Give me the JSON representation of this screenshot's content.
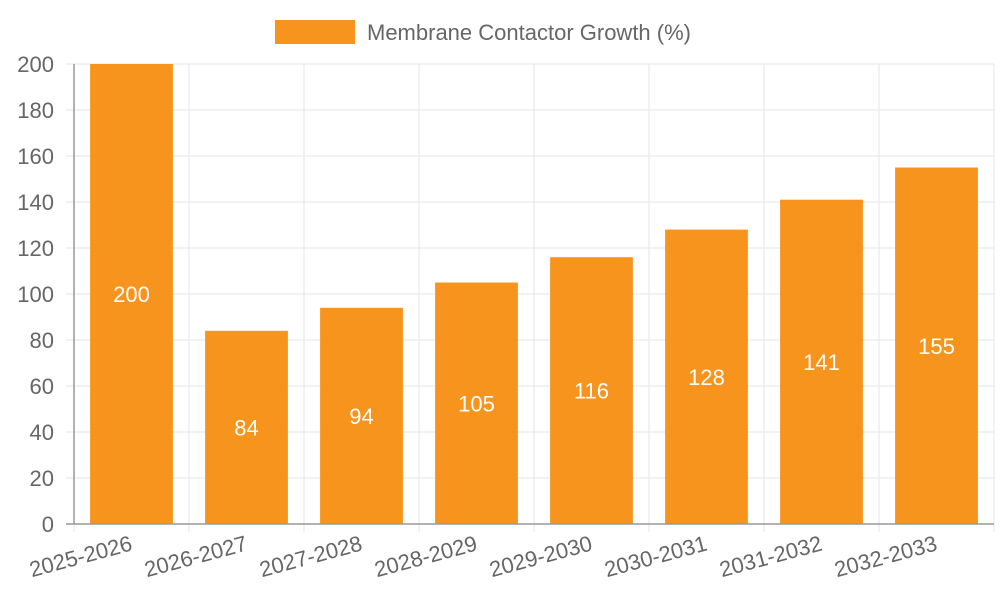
{
  "chart_data": {
    "type": "bar",
    "categories": [
      "2025-2026",
      "2026-2027",
      "2027-2028",
      "2028-2029",
      "2029-2030",
      "2030-2031",
      "2031-2032",
      "2032-2033"
    ],
    "series": [
      {
        "name": "Membrane Contactor Growth (%)",
        "values": [
          200,
          84,
          94,
          105,
          116,
          128,
          141,
          155
        ],
        "color": "#F7941D"
      }
    ],
    "ylim": [
      0,
      200
    ],
    "y_ticks": [
      "0",
      "20",
      "40",
      "60",
      "80",
      "100",
      "120",
      "140",
      "160",
      "180",
      "200"
    ],
    "grid": true,
    "legend_position": "top",
    "data_labels": true
  },
  "colors": {
    "bar": "#F7941D",
    "grid": "#e5e5e5",
    "axis": "#999999",
    "text": "#666666",
    "label": "#ffffff"
  }
}
